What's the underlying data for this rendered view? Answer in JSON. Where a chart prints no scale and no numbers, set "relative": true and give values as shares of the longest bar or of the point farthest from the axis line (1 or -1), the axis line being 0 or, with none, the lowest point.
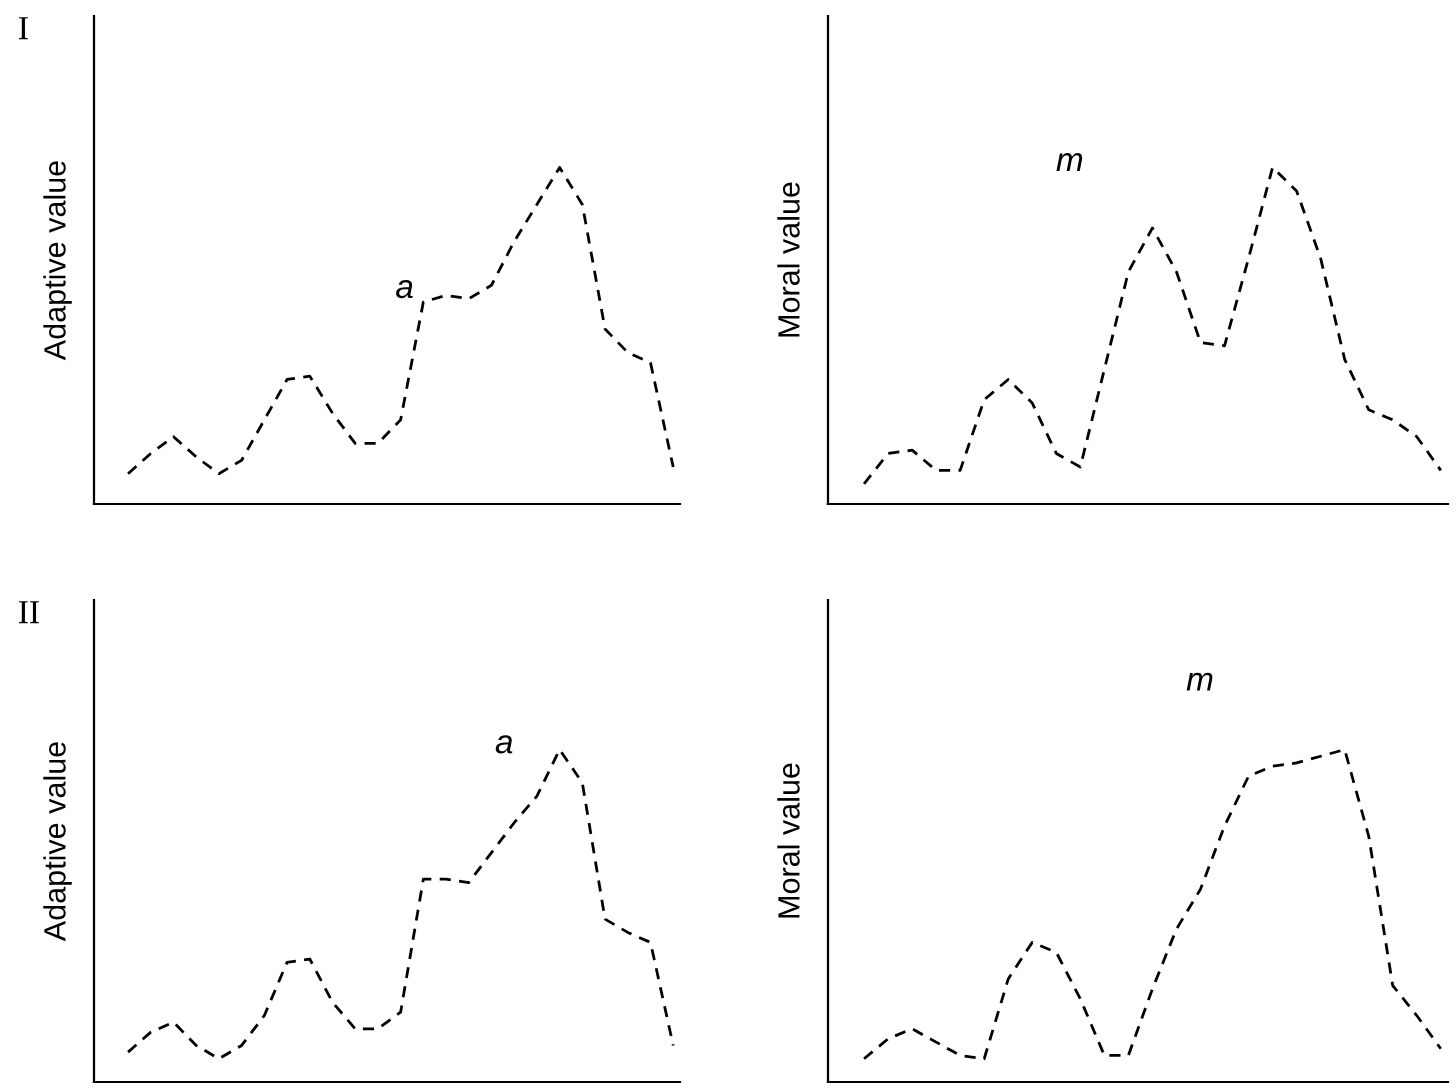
{
  "chart_data": [
    {
      "type": "line",
      "title": "I",
      "ylabel": "Adaptive value",
      "relative": true,
      "line_style": "dashed",
      "categories": [
        null,
        null,
        null,
        null,
        null,
        null,
        null,
        null,
        null,
        null,
        null,
        null,
        null,
        null,
        null,
        null,
        null,
        null,
        null,
        null,
        null,
        null,
        null,
        null,
        null
      ],
      "series": [
        {
          "color": "#000000",
          "values": [
            0.09,
            0.15,
            0.2,
            0.14,
            0.09,
            0.13,
            0.25,
            0.37,
            0.38,
            0.27,
            0.18,
            0.18,
            0.25,
            0.6,
            0.62,
            0.61,
            0.65,
            0.78,
            0.89,
            1.0,
            0.89,
            0.52,
            0.45,
            0.42,
            0.11
          ]
        }
      ],
      "annotations": [
        "a"
      ]
    },
    {
      "type": "line",
      "ylabel": "Moral value",
      "relative": true,
      "line_style": "dashed",
      "categories": [
        null,
        null,
        null,
        null,
        null,
        null,
        null,
        null,
        null,
        null,
        null,
        null,
        null,
        null,
        null,
        null,
        null,
        null,
        null,
        null,
        null,
        null,
        null,
        null,
        null
      ],
      "series": [
        {
          "color": "#000000",
          "values": [
            0.06,
            0.15,
            0.16,
            0.1,
            0.1,
            0.31,
            0.37,
            0.3,
            0.15,
            0.11,
            0.4,
            0.69,
            0.82,
            0.69,
            0.48,
            0.47,
            0.73,
            1.0,
            0.93,
            0.73,
            0.43,
            0.28,
            0.25,
            0.2,
            0.1
          ]
        }
      ],
      "annotations": [
        "m"
      ]
    },
    {
      "type": "line",
      "title": "II",
      "ylabel": "Adaptive value",
      "relative": true,
      "line_style": "dashed",
      "categories": [
        null,
        null,
        null,
        null,
        null,
        null,
        null,
        null,
        null,
        null,
        null,
        null,
        null,
        null,
        null,
        null,
        null,
        null,
        null,
        null,
        null,
        null,
        null,
        null,
        null
      ],
      "series": [
        {
          "color": "#000000",
          "values": [
            0.09,
            0.15,
            0.18,
            0.11,
            0.07,
            0.11,
            0.2,
            0.36,
            0.37,
            0.24,
            0.16,
            0.16,
            0.21,
            0.61,
            0.61,
            0.6,
            0.69,
            0.78,
            0.86,
            1.0,
            0.9,
            0.49,
            0.45,
            0.42,
            0.11
          ]
        }
      ],
      "annotations": [
        "a"
      ]
    },
    {
      "type": "line",
      "ylabel": "Moral value",
      "relative": true,
      "line_style": "dashed",
      "categories": [
        null,
        null,
        null,
        null,
        null,
        null,
        null,
        null,
        null,
        null,
        null,
        null,
        null,
        null,
        null,
        null,
        null,
        null,
        null,
        null,
        null,
        null,
        null,
        null,
        null
      ],
      "series": [
        {
          "color": "#000000",
          "values": [
            0.07,
            0.13,
            0.16,
            0.12,
            0.08,
            0.07,
            0.31,
            0.42,
            0.39,
            0.25,
            0.08,
            0.08,
            0.28,
            0.46,
            0.58,
            0.77,
            0.92,
            0.95,
            0.96,
            0.98,
            1.0,
            0.74,
            0.29,
            0.2,
            0.1
          ]
        }
      ],
      "annotations": [
        "m"
      ]
    }
  ]
}
